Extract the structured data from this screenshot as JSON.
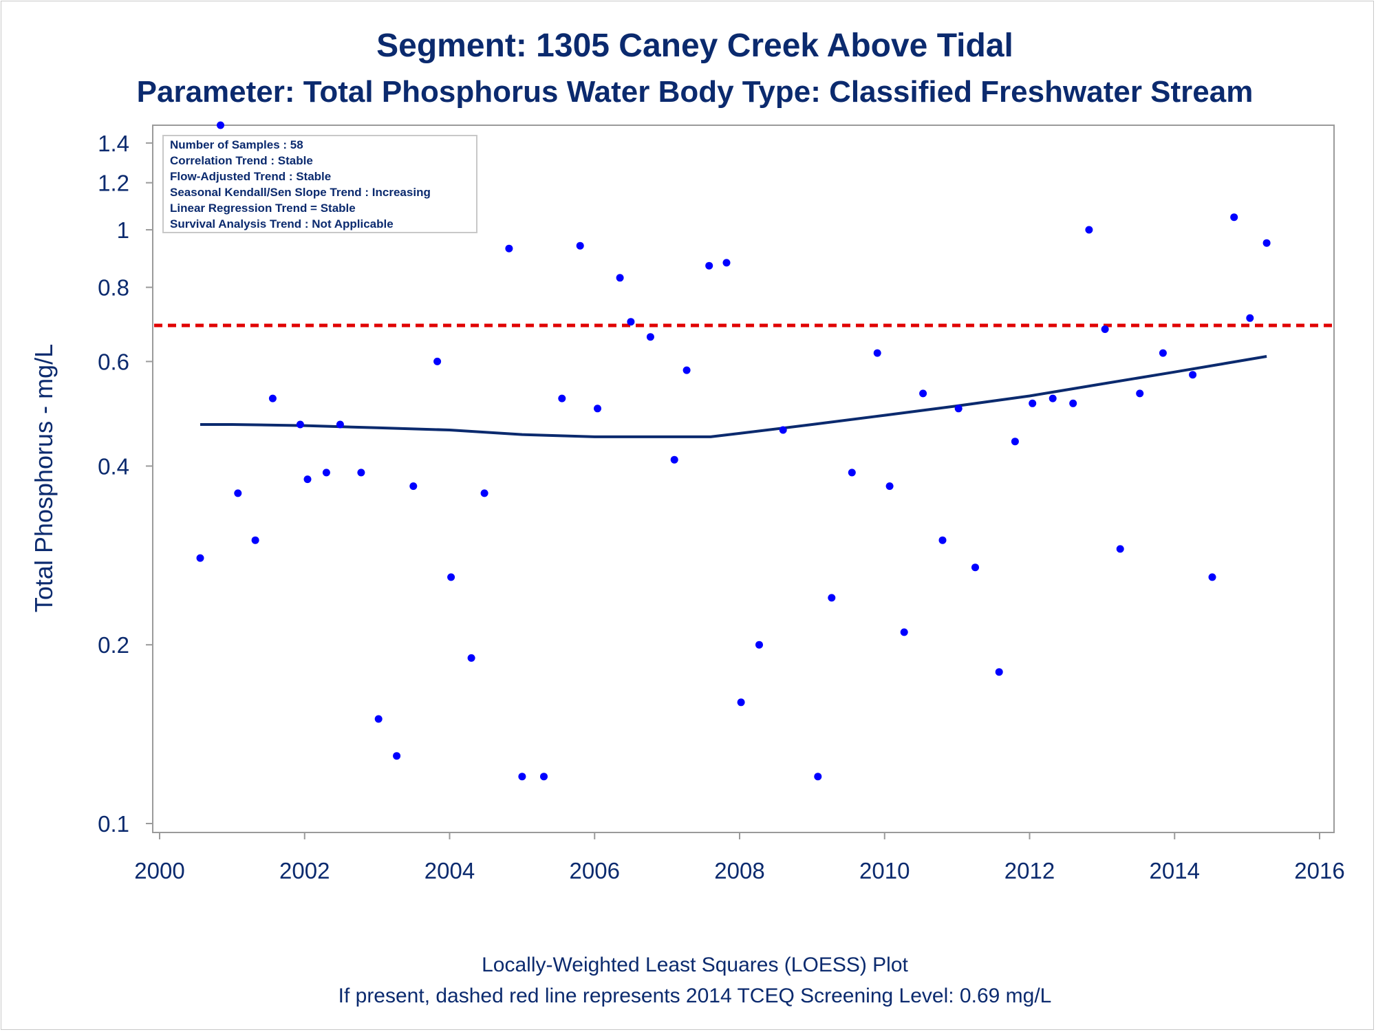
{
  "title": "Segment: 1305  Caney Creek Above Tidal",
  "subtitle": "Parameter: Total Phosphorus   Water Body Type: Classified Freshwater Stream",
  "info_box": [
    "Number of Samples : 58",
    "Correlation Trend : Stable",
    "Flow-Adjusted Trend : Stable",
    "Seasonal Kendall/Sen Slope Trend : Increasing",
    "Linear Regression Trend = Stable",
    "Survival Analysis Trend : Not Applicable"
  ],
  "footer": {
    "line1": "Locally-Weighted Least Squares (LOESS) Plot",
    "line2": "If present, dashed red line represents 2014 TCEQ Screening Level: 0.69 mg/L"
  },
  "colors": {
    "text": "#0b2a6e",
    "points": "#0000ff",
    "loess": "#0b2a6e",
    "screening": "#e00000",
    "axis": "#9a9a9a"
  },
  "chart_data": {
    "type": "scatter",
    "title": "Segment: 1305  Caney Creek Above Tidal",
    "xlabel": "",
    "ylabel": "Total Phosphorus - mg/L",
    "yscale": "log",
    "xlim": [
      2000,
      2016
    ],
    "ylim": [
      0.1,
      1.5
    ],
    "x_ticks": [
      2000,
      2002,
      2004,
      2006,
      2008,
      2010,
      2012,
      2014,
      2016
    ],
    "y_ticks": [
      0.1,
      0.2,
      0.4,
      0.6,
      0.8,
      1,
      1.2,
      1.4
    ],
    "y_tick_labels": [
      "0.1",
      "0.2",
      "0.4",
      "0.6",
      "0.8",
      "1",
      "1.2",
      "1.4"
    ],
    "points": [
      [
        2000.56,
        0.28
      ],
      [
        2000.84,
        1.5
      ],
      [
        2001.08,
        0.36
      ],
      [
        2001.32,
        0.3
      ],
      [
        2001.56,
        0.52
      ],
      [
        2001.94,
        0.47
      ],
      [
        2002.04,
        0.38
      ],
      [
        2002.3,
        0.39
      ],
      [
        2002.49,
        0.47
      ],
      [
        2002.78,
        0.39
      ],
      [
        2003.02,
        0.15
      ],
      [
        2003.27,
        0.13
      ],
      [
        2003.5,
        0.37
      ],
      [
        2003.83,
        0.6
      ],
      [
        2004.02,
        0.26
      ],
      [
        2004.3,
        0.19
      ],
      [
        2004.48,
        0.36
      ],
      [
        2004.82,
        0.93
      ],
      [
        2005.0,
        0.12
      ],
      [
        2005.3,
        0.12
      ],
      [
        2005.55,
        0.52
      ],
      [
        2005.8,
        0.94
      ],
      [
        2006.04,
        0.5
      ],
      [
        2006.35,
        0.83
      ],
      [
        2006.5,
        0.7
      ],
      [
        2006.77,
        0.66
      ],
      [
        2007.1,
        0.41
      ],
      [
        2007.27,
        0.58
      ],
      [
        2007.58,
        0.87
      ],
      [
        2007.82,
        0.88
      ],
      [
        2008.02,
        0.16
      ],
      [
        2008.27,
        0.2
      ],
      [
        2008.6,
        0.46
      ],
      [
        2009.08,
        0.12
      ],
      [
        2009.27,
        0.24
      ],
      [
        2009.55,
        0.39
      ],
      [
        2009.9,
        0.62
      ],
      [
        2010.07,
        0.37
      ],
      [
        2010.27,
        0.21
      ],
      [
        2010.53,
        0.53
      ],
      [
        2010.8,
        0.3
      ],
      [
        2011.02,
        0.5
      ],
      [
        2011.25,
        0.27
      ],
      [
        2011.58,
        0.18
      ],
      [
        2011.8,
        0.44
      ],
      [
        2012.04,
        0.51
      ],
      [
        2012.32,
        0.52
      ],
      [
        2012.6,
        0.51
      ],
      [
        2012.82,
        1.0
      ],
      [
        2013.04,
        0.68
      ],
      [
        2013.25,
        0.29
      ],
      [
        2013.52,
        0.53
      ],
      [
        2013.84,
        0.62
      ],
      [
        2014.25,
        0.57
      ],
      [
        2014.52,
        0.26
      ],
      [
        2014.82,
        1.05
      ],
      [
        2015.04,
        0.71
      ],
      [
        2015.27,
        0.95
      ]
    ],
    "loess": [
      [
        2000.56,
        0.47
      ],
      [
        2001.0,
        0.47
      ],
      [
        2002.0,
        0.468
      ],
      [
        2003.0,
        0.464
      ],
      [
        2004.0,
        0.46
      ],
      [
        2005.0,
        0.452
      ],
      [
        2006.0,
        0.448
      ],
      [
        2007.0,
        0.448
      ],
      [
        2007.6,
        0.448
      ],
      [
        2008.0,
        0.454
      ],
      [
        2009.0,
        0.47
      ],
      [
        2010.0,
        0.487
      ],
      [
        2011.0,
        0.505
      ],
      [
        2012.0,
        0.525
      ],
      [
        2013.0,
        0.55
      ],
      [
        2014.0,
        0.576
      ],
      [
        2015.27,
        0.612
      ]
    ],
    "screening_level": 0.69,
    "grid": false,
    "legend": "top-left"
  }
}
